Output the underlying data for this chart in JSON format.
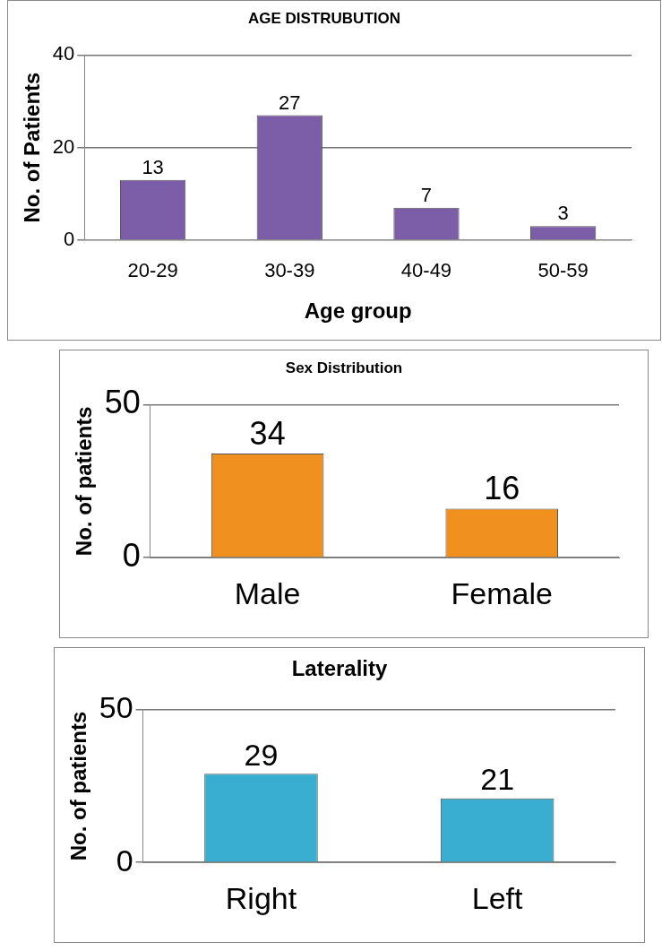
{
  "chart_data": [
    {
      "type": "bar",
      "title": "AGE DISTRUBUTION",
      "xlabel": "Age group",
      "ylabel": "No. of Patients",
      "categories": [
        "20-29",
        "30-39",
        "40-49",
        "50-59"
      ],
      "values": [
        13,
        27,
        7,
        3
      ],
      "color": "#7b5ea7",
      "ylim": [
        0,
        40
      ],
      "yticks": [
        0,
        20,
        40
      ],
      "grid": "y",
      "data_labels": true
    },
    {
      "type": "bar",
      "title": "Sex Distribution",
      "ylabel": "No. of patients",
      "categories": [
        "Male",
        "Female"
      ],
      "values": [
        34,
        16
      ],
      "color": "#f0901e",
      "ylim": [
        0,
        50
      ],
      "yticks": [
        0,
        50
      ],
      "grid": "y",
      "data_labels": true
    },
    {
      "type": "bar",
      "title": "Laterality",
      "ylabel": "No. of patients",
      "categories": [
        "Right",
        "Left"
      ],
      "values": [
        29,
        21
      ],
      "color": "#3aaed0",
      "ylim": [
        0,
        50
      ],
      "yticks": [
        0,
        50
      ],
      "grid": "y",
      "data_labels": true
    }
  ]
}
